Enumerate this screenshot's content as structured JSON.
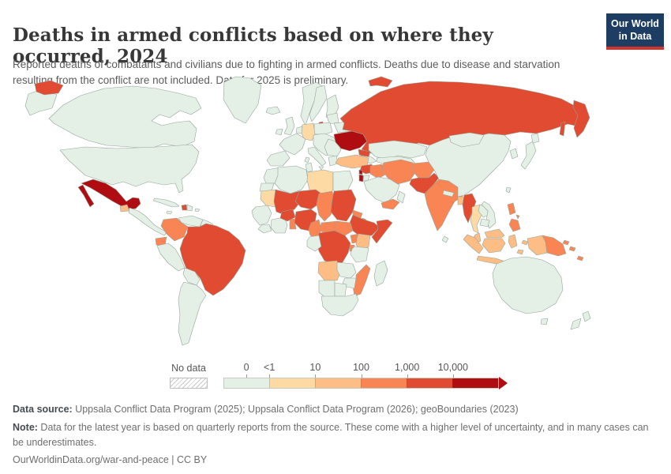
{
  "header": {
    "title": "Deaths in armed conflicts based on where they occurred, 2024",
    "subtitle": "Reported deaths of combatants and civilians due to fighting in armed conflicts. Deaths due to disease and starvation resulting from the conflict are not included. Data for 2025 is preliminary.",
    "logo": {
      "line1": "Our World",
      "line2": "in Data",
      "bg_color": "#1d3d63",
      "stripe_color": "#d0342c"
    }
  },
  "legend": {
    "no_data_label": "No data",
    "tick_labels": [
      "0",
      "<1",
      "10",
      "100",
      "1,000",
      "10,000"
    ],
    "bins": [
      "0",
      "<1–10",
      "10–100",
      "100–1,000",
      "1,000–10,000",
      ">10,000"
    ]
  },
  "map": {
    "bin_colors": {
      "No data": "#ffffff",
      "0": "#e4efe6",
      "<1–10": "#fdd9a4",
      "10–100": "#fdbd85",
      "100–1,000": "#f98555",
      "1,000–10,000": "#e04b31",
      ">10,000": "#b00d13"
    },
    "border_color": "#93a59a"
  },
  "chart_data": {
    "type": "choropleth",
    "title": "Deaths in armed conflicts based on where they occurred, 2024",
    "unit": "reported deaths",
    "legend_bins": [
      "0",
      "<1–10",
      "10–100",
      "100–1,000",
      "1,000–10,000",
      ">10,000"
    ],
    "default_bin": "0",
    "values": {
      "Ukraine": ">10,000",
      "Mexico": ">10,000",
      "Israel": ">10,000",
      "Lebanon": ">10,000",
      "Russia": "1,000–10,000",
      "Brazil": "1,000–10,000",
      "Haiti": "1,000–10,000",
      "Syria": "1,000–10,000",
      "Mali": "1,000–10,000",
      "Burkina Faso": "1,000–10,000",
      "Niger": "1,000–10,000",
      "Nigeria": "1,000–10,000",
      "Sudan": "1,000–10,000",
      "Ethiopia": "1,000–10,000",
      "Somalia": "1,000–10,000",
      "Democratic Republic of Congo": "1,000–10,000",
      "Myanmar": "1,000–10,000",
      "Pakistan": "1,000–10,000",
      "Colombia": "100–1,000",
      "Ecuador": "100–1,000",
      "Iraq": "100–1,000",
      "Iran": "100–1,000",
      "Afghanistan": "100–1,000",
      "India": "100–1,000",
      "Yemen": "100–1,000",
      "Philippines": "100–1,000",
      "Papua New Guinea": "100–1,000",
      "Cameroon": "100–1,000",
      "Central African Republic": "100–1,000",
      "South Sudan": "100–1,000",
      "Uganda": "100–1,000",
      "Mozambique": "100–1,000",
      "Chad": "100–1,000",
      "Eritrea": "100–1,000",
      "Benin": "100–1,000",
      "Burundi": "100–1,000",
      "Djibouti": "100–1,000",
      "Guatemala": "10–100",
      "Angola": "10–100",
      "Kenya": "10–100",
      "Indonesia": "10–100",
      "Turkey": "10–100",
      "Bangladesh": "10–100",
      "Malaysia": "10–100",
      "Germany": "<1–10",
      "Libya": "<1–10",
      "Mauritania": "<1–10",
      "Thailand": "<1–10"
    }
  },
  "footer": {
    "source_label": "Data source:",
    "source_text": " Uppsala Conflict Data Program (2025); Uppsala Conflict Data Program (2026); geoBoundaries (2023)",
    "note_label": "Note:",
    "note_text": " Data for the latest year is based on quarterly reports from the source. These come with a higher level of uncertainty, and in many cases can be underestimates.",
    "url": "OurWorldinData.org/war-and-peace",
    "separator": " | ",
    "license": "CC BY"
  }
}
